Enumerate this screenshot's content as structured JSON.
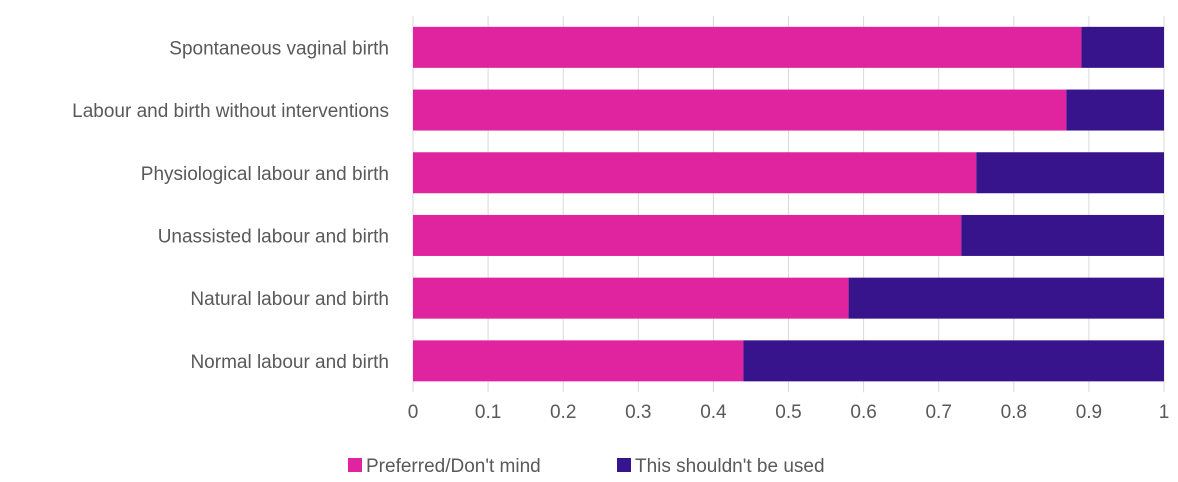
{
  "chart_data": {
    "type": "bar",
    "orientation": "horizontal",
    "stacked": true,
    "categories": [
      "Spontaneous vaginal birth",
      "Labour and birth without interventions",
      "Physiological labour and birth",
      "Unassisted labour and birth",
      "Natural labour and birth",
      "Normal labour and birth"
    ],
    "series": [
      {
        "name": "Preferred/Don't mind",
        "color": "#e0239e",
        "values": [
          0.89,
          0.87,
          0.75,
          0.73,
          0.58,
          0.44
        ]
      },
      {
        "name": "This shouldn't be used",
        "color": "#37148c",
        "values": [
          0.11,
          0.13,
          0.25,
          0.27,
          0.42,
          0.56
        ]
      }
    ],
    "xlim": [
      0,
      1
    ],
    "x_ticks": [
      "0",
      "0.1",
      "0.2",
      "0.3",
      "0.4",
      "0.5",
      "0.6",
      "0.7",
      "0.8",
      "0.9",
      "1"
    ],
    "grid": true,
    "legend_position": "bottom",
    "title": "",
    "xlabel": "",
    "ylabel": ""
  }
}
